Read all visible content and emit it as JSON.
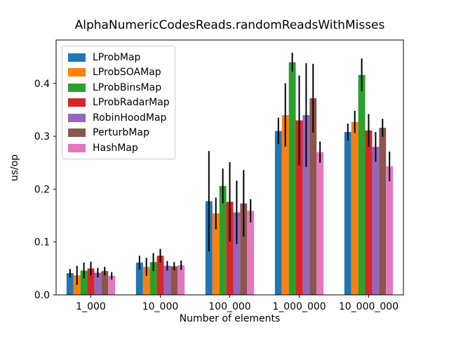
{
  "chart_data": {
    "type": "bar",
    "title": "AlphaNumericCodesReads.randomReadsWithMisses",
    "xlabel": "Number of elements",
    "ylabel": "us/op",
    "categories": [
      "1_000",
      "10_000",
      "100_000",
      "1_000_000",
      "10_000_000"
    ],
    "series": [
      {
        "name": "LProbMap",
        "color": "#1f77b4",
        "values": [
          0.041,
          0.061,
          0.177,
          0.31,
          0.308
        ],
        "errors": [
          0.008,
          0.013,
          0.095,
          0.025,
          0.016
        ]
      },
      {
        "name": "LProbSOAMap",
        "color": "#ff7f0e",
        "values": [
          0.037,
          0.053,
          0.154,
          0.34,
          0.327
        ],
        "errors": [
          0.018,
          0.017,
          0.03,
          0.06,
          0.021
        ]
      },
      {
        "name": "LProbBinsMap",
        "color": "#2ca02c",
        "values": [
          0.046,
          0.062,
          0.206,
          0.44,
          0.416
        ],
        "errors": [
          0.015,
          0.017,
          0.033,
          0.018,
          0.031
        ]
      },
      {
        "name": "LProbRadarMap",
        "color": "#d62728",
        "values": [
          0.05,
          0.074,
          0.176,
          0.33,
          0.311
        ],
        "errors": [
          0.013,
          0.013,
          0.075,
          0.085,
          0.031
        ]
      },
      {
        "name": "RobinHoodMap",
        "color": "#9467bd",
        "values": [
          0.042,
          0.055,
          0.156,
          0.34,
          0.28
        ],
        "errors": [
          0.009,
          0.009,
          0.06,
          0.098,
          0.028
        ]
      },
      {
        "name": "PerturbMap",
        "color": "#8c564b",
        "values": [
          0.045,
          0.054,
          0.173,
          0.372,
          0.316
        ],
        "errors": [
          0.008,
          0.008,
          0.063,
          0.065,
          0.017
        ]
      },
      {
        "name": "HashMap",
        "color": "#e377c2",
        "values": [
          0.036,
          0.056,
          0.159,
          0.27,
          0.243
        ],
        "errors": [
          0.007,
          0.009,
          0.022,
          0.02,
          0.028
        ]
      }
    ],
    "yticks": [
      0.0,
      0.1,
      0.2,
      0.3,
      0.4
    ],
    "ylim": [
      0,
      0.482
    ],
    "grid": false,
    "legend_position": "upper left",
    "bar_group_width_fraction": 0.7,
    "error_bar_color": "#000000",
    "axis_color": "#000000",
    "legend_border_color": "#cccccc"
  }
}
